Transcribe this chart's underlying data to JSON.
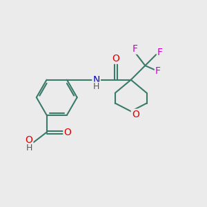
{
  "bg_color": "#ebebeb",
  "bond_color": "#3a7a6a",
  "atom_colors": {
    "O": "#dd0000",
    "N": "#0000cc",
    "F": "#cc00cc",
    "H": "#555555",
    "C": "#000000"
  },
  "bond_width": 1.5,
  "font_size": 10,
  "figsize": [
    3.0,
    3.0
  ],
  "dpi": 100
}
